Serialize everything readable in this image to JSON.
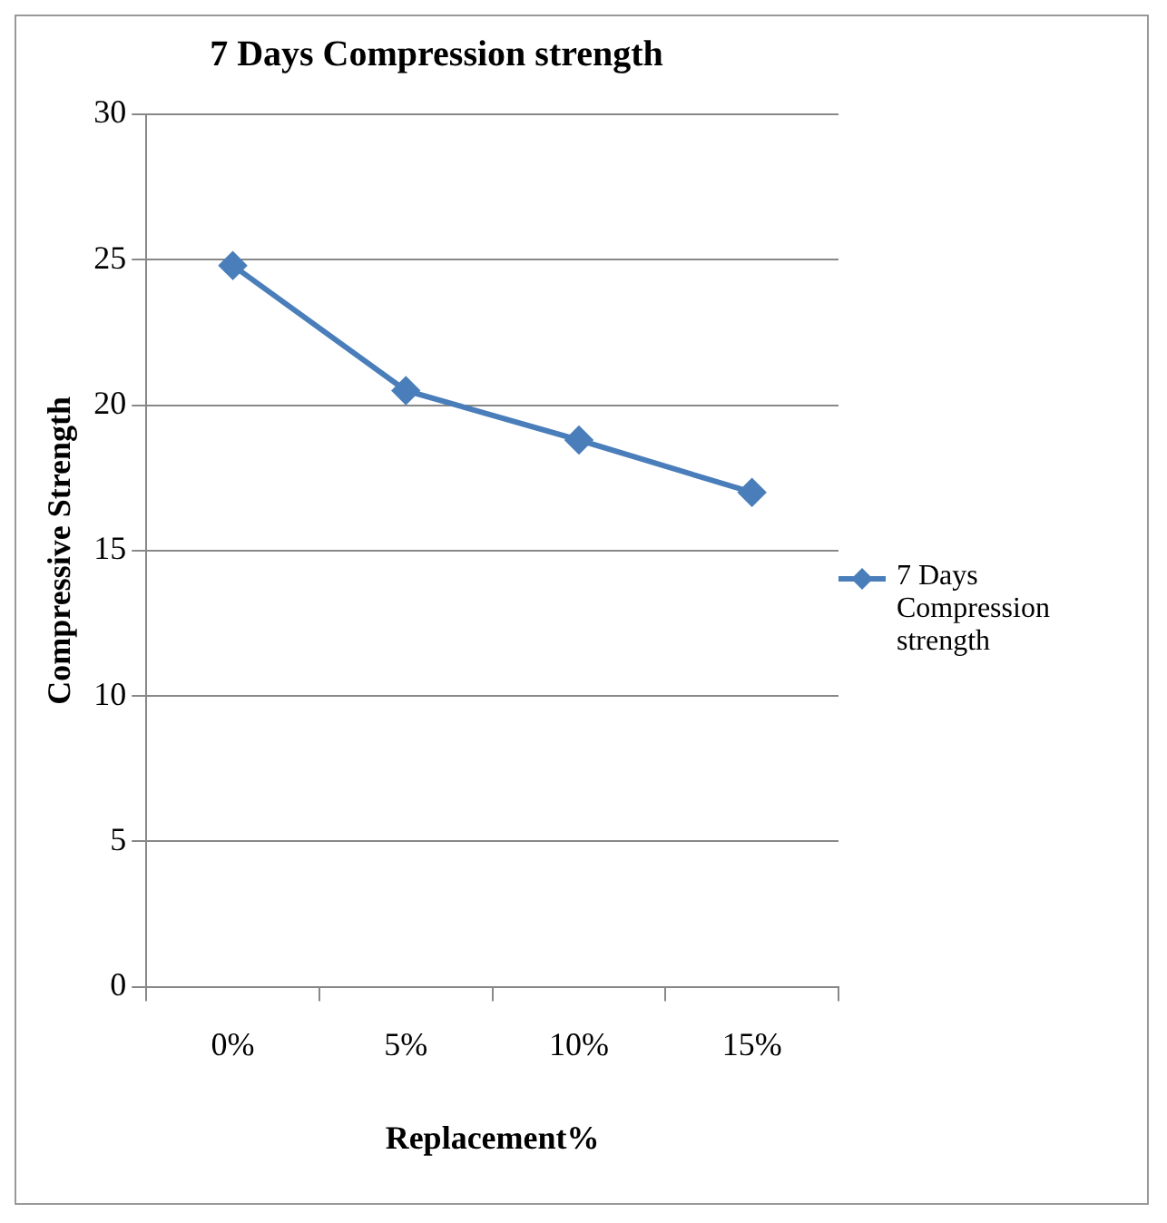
{
  "chart_data": {
    "type": "line",
    "title": "7 Days Compression strength",
    "xlabel": "Replacement%",
    "ylabel": "Compressive Strength",
    "categories": [
      "0%",
      "5%",
      "10%",
      "15%"
    ],
    "series": [
      {
        "name": "7 Days Compression strength",
        "color": "#4a7ebb",
        "values": [
          24.8,
          20.5,
          18.8,
          17.0
        ]
      }
    ],
    "ylim": [
      0,
      30
    ],
    "yticks": [
      0,
      5,
      10,
      15,
      20,
      25,
      30
    ],
    "grid": "y",
    "legend": "right",
    "marker": "diamond",
    "line_style": "solid"
  }
}
